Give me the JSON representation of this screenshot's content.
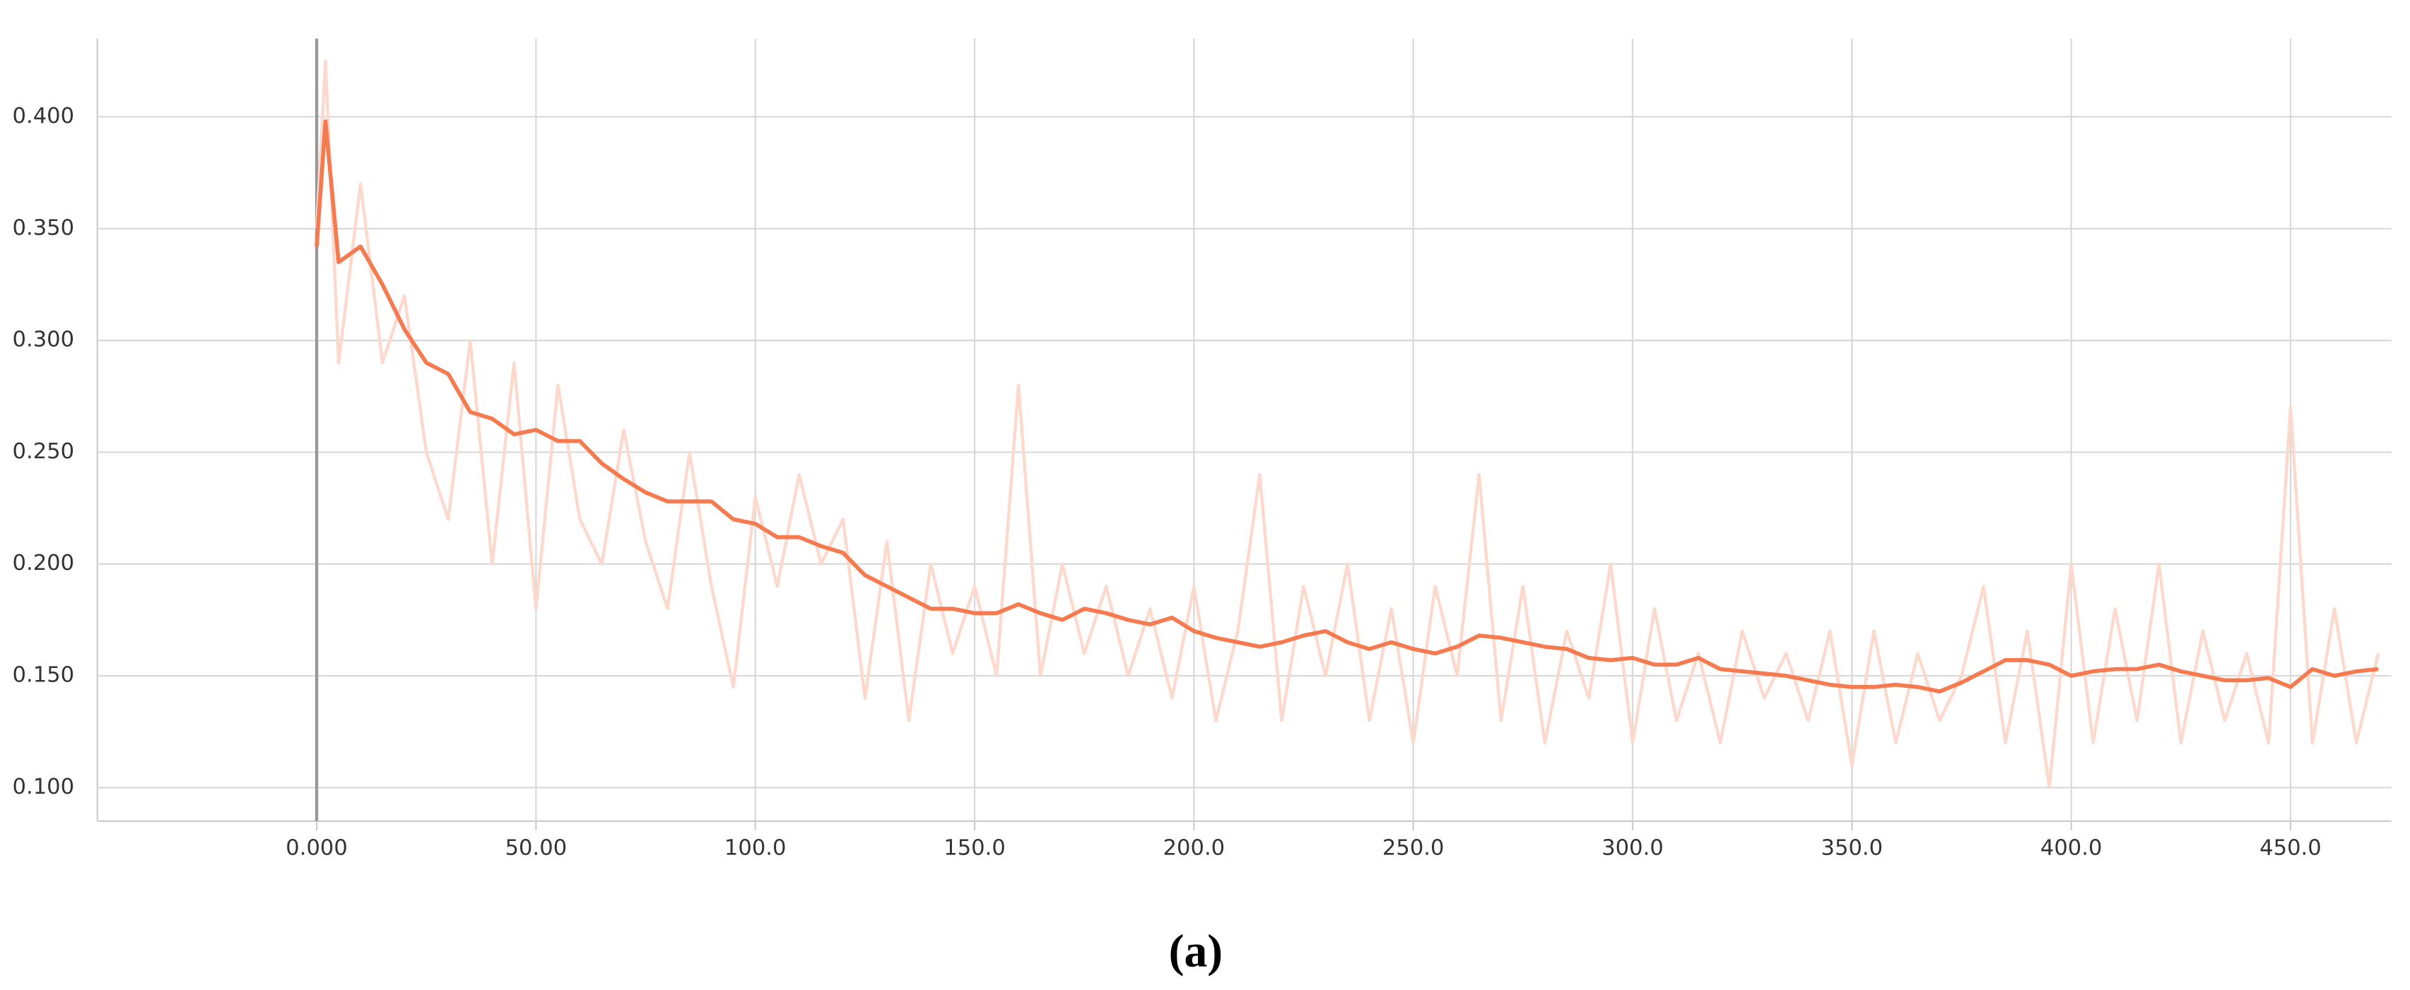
{
  "chart_data": {
    "type": "line",
    "caption": "(a)",
    "xlim": [
      -50,
      473
    ],
    "ylim": [
      0.085,
      0.435
    ],
    "grid": true,
    "xticks": [
      {
        "value": 0,
        "label": "0.000"
      },
      {
        "value": 50,
        "label": "50.00"
      },
      {
        "value": 100,
        "label": "100.0"
      },
      {
        "value": 150,
        "label": "150.0"
      },
      {
        "value": 200,
        "label": "200.0"
      },
      {
        "value": 250,
        "label": "250.0"
      },
      {
        "value": 300,
        "label": "300.0"
      },
      {
        "value": 350,
        "label": "350.0"
      },
      {
        "value": 400,
        "label": "400.0"
      },
      {
        "value": 450,
        "label": "450.0"
      }
    ],
    "yticks": [
      {
        "value": 0.1,
        "label": "0.100"
      },
      {
        "value": 0.15,
        "label": "0.150"
      },
      {
        "value": 0.2,
        "label": "0.200"
      },
      {
        "value": 0.25,
        "label": "0.250"
      },
      {
        "value": 0.3,
        "label": "0.300"
      },
      {
        "value": 0.35,
        "label": "0.350"
      },
      {
        "value": 0.4,
        "label": "0.400"
      }
    ],
    "x": [
      0,
      2,
      5,
      10,
      15,
      20,
      25,
      30,
      35,
      40,
      45,
      50,
      55,
      60,
      65,
      70,
      75,
      80,
      85,
      90,
      95,
      100,
      105,
      110,
      115,
      120,
      125,
      130,
      135,
      140,
      145,
      150,
      155,
      160,
      165,
      170,
      175,
      180,
      185,
      190,
      195,
      200,
      205,
      210,
      215,
      220,
      225,
      230,
      235,
      240,
      245,
      250,
      255,
      260,
      265,
      270,
      275,
      280,
      285,
      290,
      295,
      300,
      305,
      310,
      315,
      320,
      325,
      330,
      335,
      340,
      345,
      350,
      355,
      360,
      365,
      370,
      375,
      380,
      385,
      390,
      395,
      400,
      405,
      410,
      415,
      420,
      425,
      430,
      435,
      440,
      445,
      450,
      455,
      460,
      465,
      470
    ],
    "series": [
      {
        "color": "#fcd9cc",
        "values": [
          0.35,
          0.425,
          0.29,
          0.37,
          0.29,
          0.32,
          0.25,
          0.22,
          0.3,
          0.2,
          0.29,
          0.18,
          0.28,
          0.22,
          0.2,
          0.26,
          0.21,
          0.18,
          0.25,
          0.19,
          0.145,
          0.23,
          0.19,
          0.24,
          0.2,
          0.22,
          0.14,
          0.21,
          0.13,
          0.2,
          0.16,
          0.19,
          0.15,
          0.28,
          0.15,
          0.2,
          0.16,
          0.19,
          0.15,
          0.18,
          0.14,
          0.19,
          0.13,
          0.17,
          0.24,
          0.13,
          0.19,
          0.15,
          0.2,
          0.13,
          0.18,
          0.12,
          0.19,
          0.15,
          0.24,
          0.13,
          0.19,
          0.12,
          0.17,
          0.14,
          0.2,
          0.12,
          0.18,
          0.13,
          0.16,
          0.12,
          0.17,
          0.14,
          0.16,
          0.13,
          0.17,
          0.11,
          0.17,
          0.12,
          0.16,
          0.13,
          0.15,
          0.19,
          0.12,
          0.17,
          0.1,
          0.2,
          0.12,
          0.18,
          0.13,
          0.2,
          0.12,
          0.17,
          0.13,
          0.16,
          0.12,
          0.27,
          0.12,
          0.18,
          0.12,
          0.16
        ]
      },
      {
        "color": "#f57a4f",
        "values": [
          0.342,
          0.398,
          0.335,
          0.342,
          0.325,
          0.305,
          0.29,
          0.285,
          0.268,
          0.265,
          0.258,
          0.26,
          0.255,
          0.255,
          0.245,
          0.238,
          0.232,
          0.228,
          0.228,
          0.228,
          0.22,
          0.218,
          0.212,
          0.212,
          0.208,
          0.205,
          0.195,
          0.19,
          0.185,
          0.18,
          0.18,
          0.178,
          0.178,
          0.182,
          0.178,
          0.175,
          0.18,
          0.178,
          0.175,
          0.173,
          0.176,
          0.17,
          0.167,
          0.165,
          0.163,
          0.165,
          0.168,
          0.17,
          0.165,
          0.162,
          0.165,
          0.162,
          0.16,
          0.163,
          0.168,
          0.167,
          0.165,
          0.163,
          0.162,
          0.158,
          0.157,
          0.158,
          0.155,
          0.155,
          0.158,
          0.153,
          0.152,
          0.151,
          0.15,
          0.148,
          0.146,
          0.145,
          0.145,
          0.146,
          0.145,
          0.143,
          0.147,
          0.152,
          0.157,
          0.157,
          0.155,
          0.15,
          0.152,
          0.153,
          0.153,
          0.155,
          0.152,
          0.15,
          0.148,
          0.148,
          0.149,
          0.145,
          0.153,
          0.15,
          0.152,
          0.153
        ]
      }
    ]
  }
}
